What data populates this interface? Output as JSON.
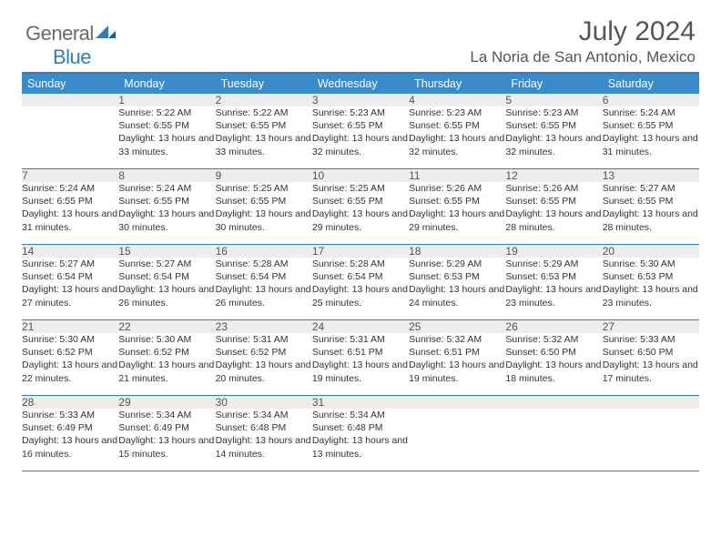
{
  "logo": {
    "general": "General",
    "blue": "Blue"
  },
  "title": "July 2024",
  "location": "La Noria de San Antonio, Mexico",
  "colors": {
    "header_bg": "#3a8bc9",
    "border": "#2d7fc0",
    "daynum_bg": "#ededed",
    "text": "#333333",
    "muted": "#555555"
  },
  "weekdays": [
    "Sunday",
    "Monday",
    "Tuesday",
    "Wednesday",
    "Thursday",
    "Friday",
    "Saturday"
  ],
  "weeks": [
    [
      {
        "n": "",
        "r": "",
        "s": "",
        "d": ""
      },
      {
        "n": "1",
        "r": "Sunrise: 5:22 AM",
        "s": "Sunset: 6:55 PM",
        "d": "Daylight: 13 hours and 33 minutes."
      },
      {
        "n": "2",
        "r": "Sunrise: 5:22 AM",
        "s": "Sunset: 6:55 PM",
        "d": "Daylight: 13 hours and 33 minutes."
      },
      {
        "n": "3",
        "r": "Sunrise: 5:23 AM",
        "s": "Sunset: 6:55 PM",
        "d": "Daylight: 13 hours and 32 minutes."
      },
      {
        "n": "4",
        "r": "Sunrise: 5:23 AM",
        "s": "Sunset: 6:55 PM",
        "d": "Daylight: 13 hours and 32 minutes."
      },
      {
        "n": "5",
        "r": "Sunrise: 5:23 AM",
        "s": "Sunset: 6:55 PM",
        "d": "Daylight: 13 hours and 32 minutes."
      },
      {
        "n": "6",
        "r": "Sunrise: 5:24 AM",
        "s": "Sunset: 6:55 PM",
        "d": "Daylight: 13 hours and 31 minutes."
      }
    ],
    [
      {
        "n": "7",
        "r": "Sunrise: 5:24 AM",
        "s": "Sunset: 6:55 PM",
        "d": "Daylight: 13 hours and 31 minutes."
      },
      {
        "n": "8",
        "r": "Sunrise: 5:24 AM",
        "s": "Sunset: 6:55 PM",
        "d": "Daylight: 13 hours and 30 minutes."
      },
      {
        "n": "9",
        "r": "Sunrise: 5:25 AM",
        "s": "Sunset: 6:55 PM",
        "d": "Daylight: 13 hours and 30 minutes."
      },
      {
        "n": "10",
        "r": "Sunrise: 5:25 AM",
        "s": "Sunset: 6:55 PM",
        "d": "Daylight: 13 hours and 29 minutes."
      },
      {
        "n": "11",
        "r": "Sunrise: 5:26 AM",
        "s": "Sunset: 6:55 PM",
        "d": "Daylight: 13 hours and 29 minutes."
      },
      {
        "n": "12",
        "r": "Sunrise: 5:26 AM",
        "s": "Sunset: 6:55 PM",
        "d": "Daylight: 13 hours and 28 minutes."
      },
      {
        "n": "13",
        "r": "Sunrise: 5:27 AM",
        "s": "Sunset: 6:55 PM",
        "d": "Daylight: 13 hours and 28 minutes."
      }
    ],
    [
      {
        "n": "14",
        "r": "Sunrise: 5:27 AM",
        "s": "Sunset: 6:54 PM",
        "d": "Daylight: 13 hours and 27 minutes."
      },
      {
        "n": "15",
        "r": "Sunrise: 5:27 AM",
        "s": "Sunset: 6:54 PM",
        "d": "Daylight: 13 hours and 26 minutes."
      },
      {
        "n": "16",
        "r": "Sunrise: 5:28 AM",
        "s": "Sunset: 6:54 PM",
        "d": "Daylight: 13 hours and 26 minutes."
      },
      {
        "n": "17",
        "r": "Sunrise: 5:28 AM",
        "s": "Sunset: 6:54 PM",
        "d": "Daylight: 13 hours and 25 minutes."
      },
      {
        "n": "18",
        "r": "Sunrise: 5:29 AM",
        "s": "Sunset: 6:53 PM",
        "d": "Daylight: 13 hours and 24 minutes."
      },
      {
        "n": "19",
        "r": "Sunrise: 5:29 AM",
        "s": "Sunset: 6:53 PM",
        "d": "Daylight: 13 hours and 23 minutes."
      },
      {
        "n": "20",
        "r": "Sunrise: 5:30 AM",
        "s": "Sunset: 6:53 PM",
        "d": "Daylight: 13 hours and 23 minutes."
      }
    ],
    [
      {
        "n": "21",
        "r": "Sunrise: 5:30 AM",
        "s": "Sunset: 6:52 PM",
        "d": "Daylight: 13 hours and 22 minutes."
      },
      {
        "n": "22",
        "r": "Sunrise: 5:30 AM",
        "s": "Sunset: 6:52 PM",
        "d": "Daylight: 13 hours and 21 minutes."
      },
      {
        "n": "23",
        "r": "Sunrise: 5:31 AM",
        "s": "Sunset: 6:52 PM",
        "d": "Daylight: 13 hours and 20 minutes."
      },
      {
        "n": "24",
        "r": "Sunrise: 5:31 AM",
        "s": "Sunset: 6:51 PM",
        "d": "Daylight: 13 hours and 19 minutes."
      },
      {
        "n": "25",
        "r": "Sunrise: 5:32 AM",
        "s": "Sunset: 6:51 PM",
        "d": "Daylight: 13 hours and 19 minutes."
      },
      {
        "n": "26",
        "r": "Sunrise: 5:32 AM",
        "s": "Sunset: 6:50 PM",
        "d": "Daylight: 13 hours and 18 minutes."
      },
      {
        "n": "27",
        "r": "Sunrise: 5:33 AM",
        "s": "Sunset: 6:50 PM",
        "d": "Daylight: 13 hours and 17 minutes."
      }
    ],
    [
      {
        "n": "28",
        "r": "Sunrise: 5:33 AM",
        "s": "Sunset: 6:49 PM",
        "d": "Daylight: 13 hours and 16 minutes."
      },
      {
        "n": "29",
        "r": "Sunrise: 5:34 AM",
        "s": "Sunset: 6:49 PM",
        "d": "Daylight: 13 hours and 15 minutes."
      },
      {
        "n": "30",
        "r": "Sunrise: 5:34 AM",
        "s": "Sunset: 6:48 PM",
        "d": "Daylight: 13 hours and 14 minutes."
      },
      {
        "n": "31",
        "r": "Sunrise: 5:34 AM",
        "s": "Sunset: 6:48 PM",
        "d": "Daylight: 13 hours and 13 minutes."
      },
      {
        "n": "",
        "r": "",
        "s": "",
        "d": ""
      },
      {
        "n": "",
        "r": "",
        "s": "",
        "d": ""
      },
      {
        "n": "",
        "r": "",
        "s": "",
        "d": ""
      }
    ]
  ]
}
